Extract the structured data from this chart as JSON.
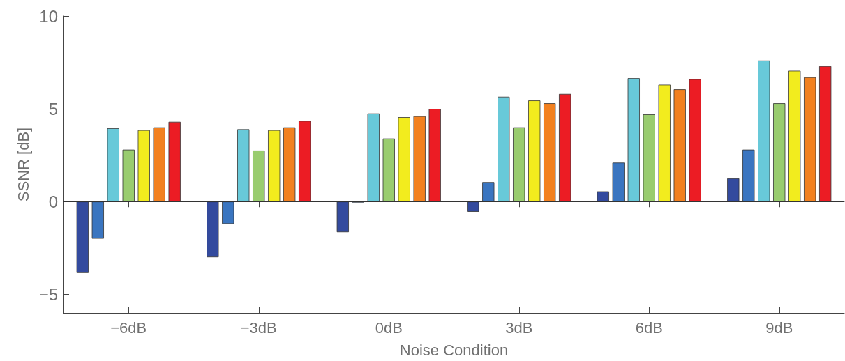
{
  "chart_data": {
    "type": "bar",
    "xlabel": "Noise Condition",
    "ylabel": "SSNR [dB]",
    "categories": [
      "−6dB",
      "−3dB",
      "0dB",
      "3dB",
      "6dB",
      "9dB"
    ],
    "series": [
      {
        "color": "#334a9e",
        "values": [
          -3.85,
          -3.0,
          -1.65,
          -0.55,
          0.55,
          1.25
        ]
      },
      {
        "color": "#3a75c0",
        "values": [
          -2.0,
          -1.2,
          -0.05,
          1.05,
          2.1,
          2.8
        ]
      },
      {
        "color": "#68c9d9",
        "values": [
          3.95,
          3.9,
          4.75,
          5.65,
          6.65,
          7.6
        ]
      },
      {
        "color": "#99cc6f",
        "values": [
          2.8,
          2.75,
          3.4,
          4.0,
          4.7,
          5.3
        ]
      },
      {
        "color": "#f2ec1e",
        "values": [
          3.85,
          3.85,
          4.55,
          5.45,
          6.3,
          7.05
        ]
      },
      {
        "color": "#f2801f",
        "values": [
          4.0,
          4.0,
          4.6,
          5.3,
          6.05,
          6.7
        ]
      },
      {
        "color": "#ec1c24",
        "values": [
          4.3,
          4.35,
          5.0,
          5.8,
          6.6,
          7.3
        ]
      }
    ],
    "ylim": [
      -6,
      10
    ],
    "yticks": [
      -5,
      0,
      5,
      10
    ],
    "grid": false
  }
}
